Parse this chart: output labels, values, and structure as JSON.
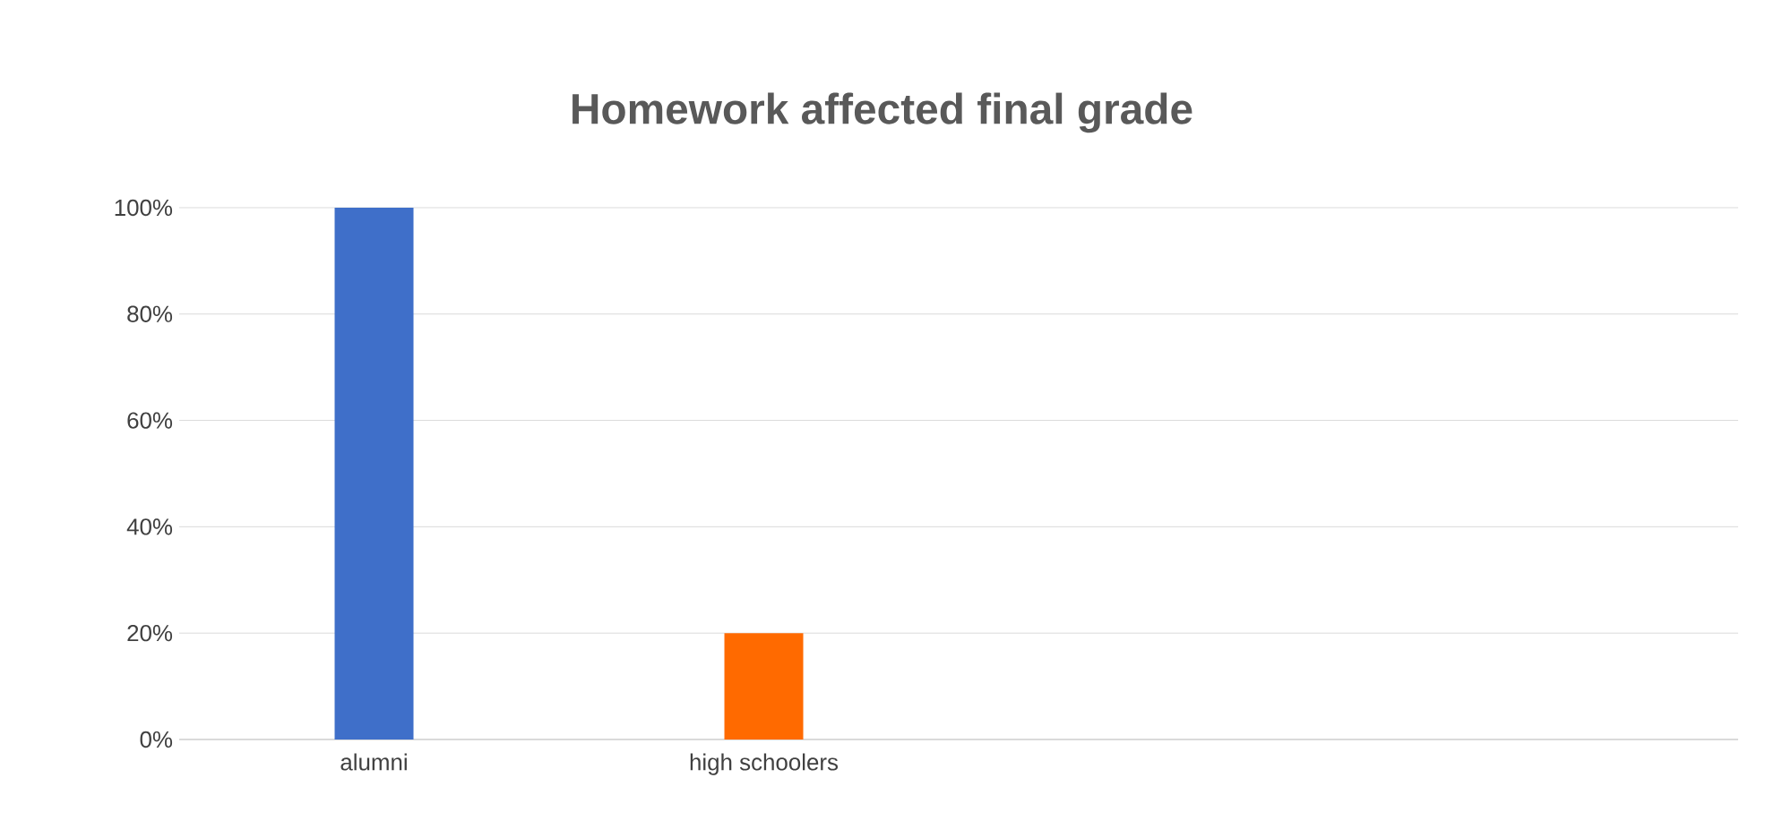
{
  "chart_data": {
    "type": "bar",
    "title": "Homework affected final grade",
    "categories": [
      "alumni",
      "high schoolers",
      null,
      null
    ],
    "values": [
      100,
      20,
      null,
      null
    ],
    "colors": [
      "#3f6fc9",
      "#ff6a00",
      null,
      null
    ],
    "ylim": [
      0,
      100
    ],
    "yticks": [
      {
        "value": 0,
        "label": "0%"
      },
      {
        "value": 20,
        "label": "20%"
      },
      {
        "value": 40,
        "label": "40%"
      },
      {
        "value": 60,
        "label": "60%"
      },
      {
        "value": 80,
        "label": "80%"
      },
      {
        "value": 100,
        "label": "100%"
      }
    ],
    "grid": "y"
  }
}
